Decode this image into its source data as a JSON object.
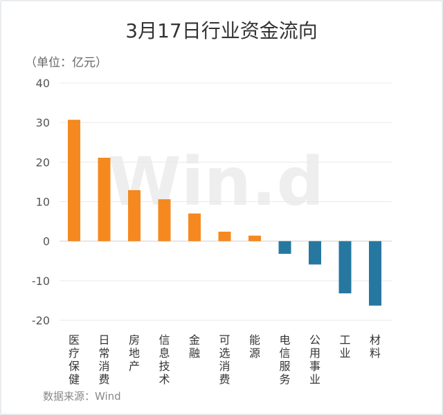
{
  "chart_data": {
    "type": "bar",
    "title": "3月17日行业资金流向",
    "unit_label": "（单位：亿元）",
    "source": "数据来源：Wind",
    "watermark": "Win.d",
    "categories": [
      "医疗保健",
      "日常消费",
      "房地产",
      "信息技术",
      "金融",
      "可选消费",
      "能源",
      "电信服务",
      "公用事业",
      "工业",
      "材料"
    ],
    "values": [
      30.7,
      21.1,
      12.9,
      10.6,
      7.0,
      2.4,
      1.4,
      -3.2,
      -5.9,
      -13.2,
      -16.3
    ],
    "ylim": [
      -20,
      40
    ],
    "yticks": [
      40,
      30,
      20,
      10,
      0,
      -10,
      -20
    ],
    "grid": true,
    "colors": {
      "positive": "#f5891f",
      "negative": "#2678a0"
    }
  }
}
